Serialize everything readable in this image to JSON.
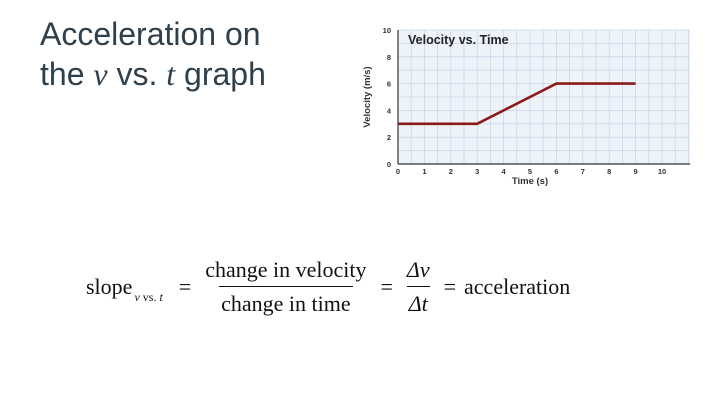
{
  "slide": {
    "title_line1": "Acceleration on",
    "title_line2_pre": "the ",
    "title_var1": "v",
    "title_mid": " vs. ",
    "title_var2": "t",
    "title_post": " graph"
  },
  "formula": {
    "slope": "slope",
    "sub_var1": "v",
    "sub_mid": " vs. ",
    "sub_var2": "t",
    "equals": "=",
    "frac1_num": "change in velocity",
    "frac1_den": "change in time",
    "frac2_num": "Δv",
    "frac2_den": "Δt",
    "result": "acceleration"
  },
  "chart_data": {
    "type": "line",
    "title": "Velocity vs. Time",
    "xlabel": "Time (s)",
    "ylabel": "Velocity (m/s)",
    "xlim": [
      0,
      10
    ],
    "ylim": [
      0,
      10
    ],
    "xticks": [
      0,
      1,
      2,
      3,
      4,
      5,
      6,
      7,
      8,
      9,
      10
    ],
    "yticks": [
      0,
      2,
      4,
      6,
      8,
      10
    ],
    "grid": true,
    "series": [
      {
        "x": [
          0,
          3,
          6,
          9
        ],
        "y": [
          3,
          3,
          6,
          6
        ],
        "color": "#8b1a1a"
      }
    ],
    "colors": {
      "grid": "#c6d8ea",
      "background": "#eef3f9",
      "axis": "#333333"
    }
  }
}
